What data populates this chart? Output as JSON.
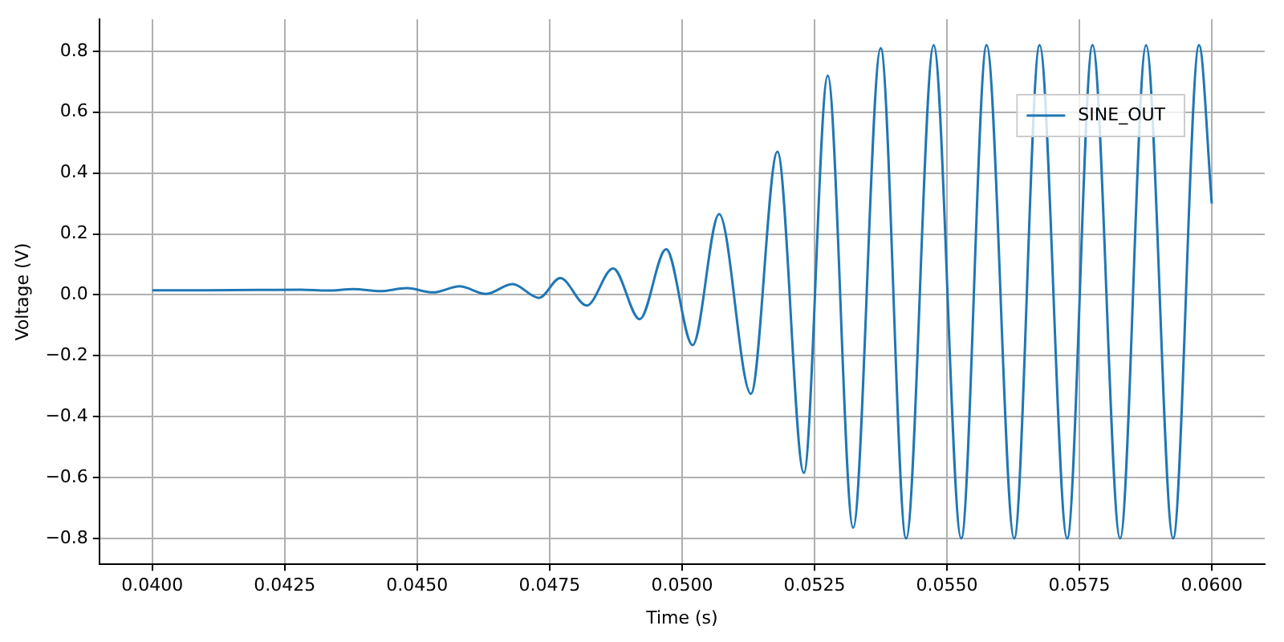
{
  "chart_data": {
    "type": "line",
    "xlabel": "Time (s)",
    "ylabel": "Voltage (V)",
    "xlim": [
      0.039,
      0.061
    ],
    "xticks": [
      {
        "value": 0.04,
        "label": "0.0400"
      },
      {
        "value": 0.0425,
        "label": "0.0425"
      },
      {
        "value": 0.045,
        "label": "0.0450"
      },
      {
        "value": 0.0475,
        "label": "0.0475"
      },
      {
        "value": 0.05,
        "label": "0.0500"
      },
      {
        "value": 0.0525,
        "label": "0.0525"
      },
      {
        "value": 0.055,
        "label": "0.0550"
      },
      {
        "value": 0.0575,
        "label": "0.0575"
      },
      {
        "value": 0.06,
        "label": "0.0600"
      }
    ],
    "ylim": [
      -0.885,
      0.905
    ],
    "yticks": [
      {
        "value": -0.8,
        "label": "−0.8"
      },
      {
        "value": -0.6,
        "label": "−0.6"
      },
      {
        "value": -0.4,
        "label": "−0.4"
      },
      {
        "value": -0.2,
        "label": "−0.2"
      },
      {
        "value": 0,
        "label": "0.0"
      },
      {
        "value": 0.2,
        "label": "0.2"
      },
      {
        "value": 0.4,
        "label": "0.4"
      },
      {
        "value": 0.6,
        "label": "0.6"
      },
      {
        "value": 0.8,
        "label": "0.8"
      }
    ],
    "grid": true,
    "legend": "top right",
    "marker": "none",
    "line_style": "solid",
    "series": [
      {
        "name": "SINE_OUT",
        "color": "#1f77b4",
        "x": [
          0.04,
          0.041,
          0.042,
          0.0428,
          0.0433,
          0.0438,
          0.0443,
          0.0448,
          0.0453,
          0.0458,
          0.0463,
          0.0468,
          0.0473,
          0.0477,
          0.0482,
          0.0487,
          0.0492,
          0.0497,
          0.0502,
          0.0507,
          0.0513,
          0.0518,
          0.0523,
          0.05275,
          0.05323,
          0.05375,
          0.05423,
          0.05475,
          0.05527,
          0.05575,
          0.05627,
          0.05675,
          0.05727,
          0.05775,
          0.05827,
          0.05876,
          0.05927,
          0.05976,
          0.06
        ],
        "values": [
          0.015,
          0.015,
          0.016,
          0.017,
          0.014,
          0.019,
          0.012,
          0.022,
          0.008,
          0.028,
          0.003,
          0.035,
          -0.01,
          0.055,
          -0.035,
          0.087,
          -0.08,
          0.15,
          -0.165,
          0.265,
          -0.325,
          0.47,
          -0.585,
          0.72,
          -0.765,
          0.81,
          -0.8,
          0.82,
          -0.8,
          0.82,
          -0.8,
          0.82,
          -0.8,
          0.82,
          -0.8,
          0.82,
          -0.8,
          0.82,
          0.3
        ]
      }
    ]
  }
}
